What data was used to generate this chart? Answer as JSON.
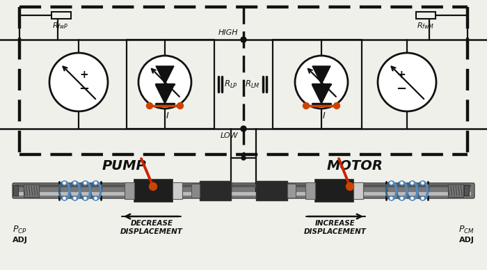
{
  "bg_color": "#f0f0eb",
  "lc": "#111111",
  "rc": "#cc2200",
  "oc": "#cc4400",
  "blue1": "#5588bb",
  "blue2": "#aaccee",
  "shaft_gray": "#888888",
  "piston_dark": "#2a2a2a",
  "collar_gray": "#aaaaaa",
  "pump_label": "PUMP",
  "motor_label": "MOTOR",
  "high_label": "HIGH",
  "low_label": "LOW",
  "rfwp_label": "$R_{fwP}$",
  "rfwm_label": "$R_{fwM}$",
  "rlp_label": "$R_{LP}$",
  "rlm_label": "$R_{LM}$",
  "pcp_label": "$P_{CP}$",
  "pcm_label": "$P_{CM}$",
  "adj": "ADJ",
  "decrease": "DECREASE\nDISPLACEMENT",
  "increase": "INCREASE\nDISPLACEMENT"
}
